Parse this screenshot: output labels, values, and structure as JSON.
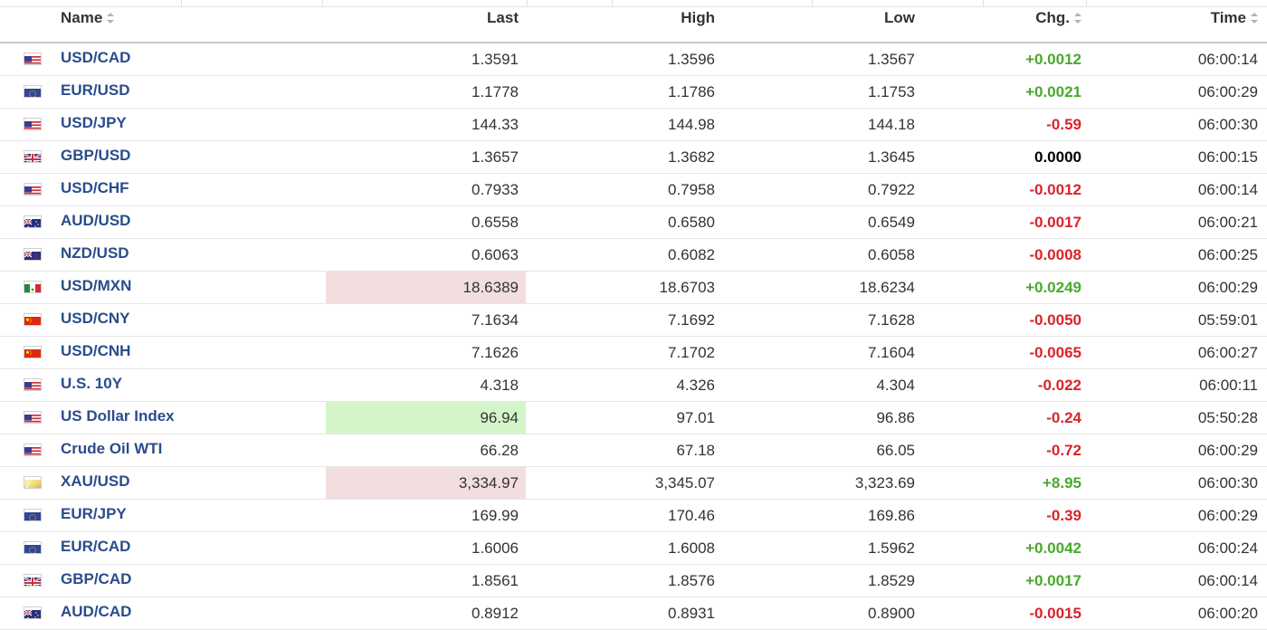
{
  "header": {
    "name": "Name",
    "last": "Last",
    "high": "High",
    "low": "Low",
    "chg": "Chg.",
    "time": "Time"
  },
  "colors": {
    "positive": "#4aa82d",
    "negative": "#d8242b",
    "link": "#2a4c8c",
    "highlight_down": "#f2dede",
    "highlight_up": "#d4f5c9"
  },
  "rows": [
    {
      "flag": "us-flag-icon",
      "name": "USD/CAD",
      "last": "1.3591",
      "high": "1.3596",
      "low": "1.3567",
      "chg": "+0.0012",
      "dir": "pos",
      "time": "06:00:14",
      "hl": ""
    },
    {
      "flag": "eu-flag-icon",
      "name": "EUR/USD",
      "last": "1.1778",
      "high": "1.1786",
      "low": "1.1753",
      "chg": "+0.0021",
      "dir": "pos",
      "time": "06:00:29",
      "hl": ""
    },
    {
      "flag": "us-flag-icon",
      "name": "USD/JPY",
      "last": "144.33",
      "high": "144.98",
      "low": "144.18",
      "chg": "-0.59",
      "dir": "neg",
      "time": "06:00:30",
      "hl": ""
    },
    {
      "flag": "uk-flag-icon",
      "name": "GBP/USD",
      "last": "1.3657",
      "high": "1.3682",
      "low": "1.3645",
      "chg": "0.0000",
      "dir": "zero",
      "time": "06:00:15",
      "hl": ""
    },
    {
      "flag": "us-flag-icon",
      "name": "USD/CHF",
      "last": "0.7933",
      "high": "0.7958",
      "low": "0.7922",
      "chg": "-0.0012",
      "dir": "neg",
      "time": "06:00:14",
      "hl": ""
    },
    {
      "flag": "au-flag-icon",
      "name": "AUD/USD",
      "last": "0.6558",
      "high": "0.6580",
      "low": "0.6549",
      "chg": "-0.0017",
      "dir": "neg",
      "time": "06:00:21",
      "hl": ""
    },
    {
      "flag": "nz-flag-icon",
      "name": "NZD/USD",
      "last": "0.6063",
      "high": "0.6082",
      "low": "0.6058",
      "chg": "-0.0008",
      "dir": "neg",
      "time": "06:00:25",
      "hl": ""
    },
    {
      "flag": "us-flag-icon",
      "name": "USD/MXN",
      "last": "18.6389",
      "high": "18.6703",
      "low": "18.6234",
      "chg": "+0.0249",
      "dir": "pos",
      "time": "06:00:29",
      "hl": "down"
    },
    {
      "flag": "cn-flag-icon",
      "name": "USD/CNY",
      "last": "7.1634",
      "high": "7.1692",
      "low": "7.1628",
      "chg": "-0.0050",
      "dir": "neg",
      "time": "05:59:01",
      "hl": ""
    },
    {
      "flag": "cn-flag-icon",
      "name": "USD/CNH",
      "last": "7.1626",
      "high": "7.1702",
      "low": "7.1604",
      "chg": "-0.0065",
      "dir": "neg",
      "time": "06:00:27",
      "hl": ""
    },
    {
      "flag": "us-flag-icon",
      "name": "U.S. 10Y",
      "last": "4.318",
      "high": "4.326",
      "low": "4.304",
      "chg": "-0.022",
      "dir": "neg",
      "time": "06:00:11",
      "hl": ""
    },
    {
      "flag": "us-flag-icon",
      "name": "US Dollar Index",
      "last": "96.94",
      "high": "97.01",
      "low": "96.86",
      "chg": "-0.24",
      "dir": "neg",
      "time": "05:50:28",
      "hl": "up"
    },
    {
      "flag": "us-flag-icon",
      "name": "Crude Oil WTI",
      "last": "66.28",
      "high": "67.18",
      "low": "66.05",
      "chg": "-0.72",
      "dir": "neg",
      "time": "06:00:29",
      "hl": ""
    },
    {
      "flag": "gold-icon",
      "name": "XAU/USD",
      "last": "3,334.97",
      "high": "3,345.07",
      "low": "3,323.69",
      "chg": "+8.95",
      "dir": "pos",
      "time": "06:00:30",
      "hl": "down"
    },
    {
      "flag": "eu-flag-icon",
      "name": "EUR/JPY",
      "last": "169.99",
      "high": "170.46",
      "low": "169.86",
      "chg": "-0.39",
      "dir": "neg",
      "time": "06:00:29",
      "hl": ""
    },
    {
      "flag": "eu-flag-icon",
      "name": "EUR/CAD",
      "last": "1.6006",
      "high": "1.6008",
      "low": "1.5962",
      "chg": "+0.0042",
      "dir": "pos",
      "time": "06:00:24",
      "hl": ""
    },
    {
      "flag": "uk-flag-icon",
      "name": "GBP/CAD",
      "last": "1.8561",
      "high": "1.8576",
      "low": "1.8529",
      "chg": "+0.0017",
      "dir": "pos",
      "time": "06:00:14",
      "hl": ""
    },
    {
      "flag": "au-flag-icon",
      "name": "AUD/CAD",
      "last": "0.8912",
      "high": "0.8931",
      "low": "0.8900",
      "chg": "-0.0015",
      "dir": "neg",
      "time": "06:00:20",
      "hl": ""
    }
  ]
}
